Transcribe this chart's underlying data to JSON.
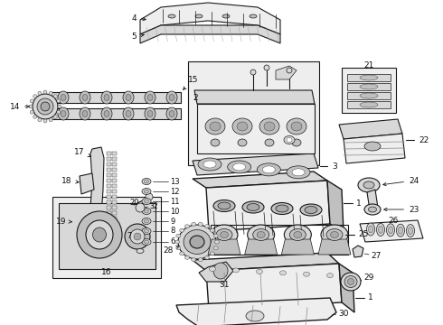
{
  "bg_color": "#ffffff",
  "fig_width": 4.9,
  "fig_height": 3.6,
  "dpi": 100,
  "line_color": "#1a1a1a",
  "lw_main": 0.8,
  "lw_thin": 0.5,
  "lw_thick": 1.0,
  "font_size": 6.5,
  "gray_fill": "#d8d8d8",
  "light_fill": "#eeeeee",
  "white_fill": "#ffffff",
  "mid_fill": "#c0c0c0",
  "dark_fill": "#aaaaaa"
}
